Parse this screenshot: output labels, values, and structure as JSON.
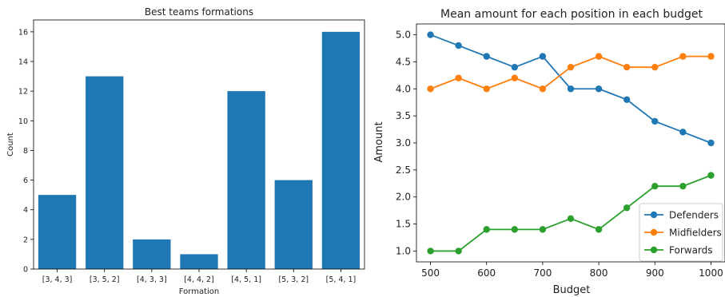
{
  "chart_data": [
    {
      "type": "bar",
      "title": "Best teams formations",
      "xlabel": "Formation",
      "ylabel": "Count",
      "categories": [
        "[3, 4, 3]",
        "[3, 5, 2]",
        "[4, 3, 3]",
        "[4, 4, 2]",
        "[4, 5, 1]",
        "[5, 3, 2]",
        "[5, 4, 1]"
      ],
      "values": [
        5,
        13,
        2,
        1,
        12,
        6,
        16
      ],
      "ylim": [
        0,
        16.8
      ],
      "yticks": [
        0,
        2,
        4,
        6,
        8,
        10,
        12,
        14,
        16
      ],
      "color": "#1f77b4",
      "grid": false
    },
    {
      "type": "line",
      "title": "Mean amount for each position in each budget",
      "xlabel": "Budget",
      "ylabel": "Amount",
      "x": [
        500,
        550,
        600,
        650,
        700,
        750,
        800,
        850,
        900,
        950,
        1000
      ],
      "xticks": [
        500,
        600,
        700,
        800,
        900,
        1000
      ],
      "xlim": [
        475,
        1025
      ],
      "yticks": [
        "1.0",
        "1.5",
        "2.0",
        "2.5",
        "3.0",
        "3.5",
        "4.0",
        "4.5",
        "5.0"
      ],
      "ylim": [
        0.8,
        5.2
      ],
      "legend": "lower-right",
      "grid": false,
      "series": [
        {
          "name": "Defenders",
          "color": "#1f77b4",
          "values": [
            5.0,
            4.8,
            4.6,
            4.4,
            4.6,
            4.0,
            4.0,
            3.8,
            3.4,
            3.2,
            3.0
          ]
        },
        {
          "name": "Midfielders",
          "color": "#ff7f0e",
          "values": [
            4.0,
            4.2,
            4.0,
            4.2,
            4.0,
            4.4,
            4.6,
            4.4,
            4.4,
            4.6,
            4.6
          ]
        },
        {
          "name": "Forwards",
          "color": "#2ca02c",
          "values": [
            1.0,
            1.0,
            1.4,
            1.4,
            1.4,
            1.6,
            1.4,
            1.8,
            2.2,
            2.2,
            2.4
          ]
        }
      ]
    }
  ]
}
